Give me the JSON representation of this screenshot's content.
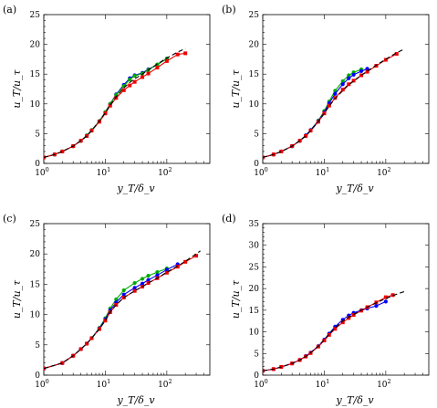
{
  "chart_data": [
    {
      "panel": "(a)",
      "type": "line",
      "xlabel": "y_T/δ_v",
      "ylabel": "u_T/u_τ",
      "xscale": "log",
      "xlim": [
        1,
        500
      ],
      "ylim": [
        0,
        25
      ],
      "yticks": [
        0,
        5,
        10,
        15,
        20,
        25
      ],
      "xticks": [
        {
          "v": 1,
          "b": "10",
          "e": "0"
        },
        {
          "v": 10,
          "b": "10",
          "e": "1"
        },
        {
          "v": 100,
          "b": "10",
          "e": "2"
        }
      ],
      "series": [
        {
          "color": "#0000ff",
          "style": "solid",
          "marker": "circle",
          "x": [
            1,
            1.5,
            2,
            3,
            4,
            5,
            6,
            8,
            10,
            12,
            15,
            20,
            25,
            30,
            40,
            50,
            70,
            100
          ],
          "y": [
            1.0,
            1.5,
            2.0,
            2.9,
            3.8,
            4.7,
            5.6,
            7.1,
            8.6,
            10.0,
            11.6,
            13.2,
            14.3,
            14.8,
            15.2,
            15.8,
            16.6,
            17.6
          ]
        },
        {
          "color": "#00aa00",
          "style": "solid",
          "marker": "circle",
          "x": [
            1,
            1.5,
            2,
            3,
            4,
            5,
            6,
            8,
            10,
            12,
            15,
            20,
            25,
            30,
            40,
            50,
            70,
            100
          ],
          "y": [
            1.0,
            1.5,
            2.0,
            2.9,
            3.8,
            4.7,
            5.6,
            7.1,
            8.6,
            10.0,
            11.5,
            13.0,
            14.1,
            14.7,
            15.1,
            15.7,
            16.6,
            17.6
          ]
        },
        {
          "color": "#ee0000",
          "style": "solid",
          "marker": "square",
          "x": [
            1,
            1.5,
            2,
            3,
            4,
            5,
            6,
            8,
            10,
            12,
            15,
            20,
            25,
            30,
            40,
            50,
            70,
            100,
            150,
            200
          ],
          "y": [
            1.0,
            1.5,
            2.0,
            2.9,
            3.8,
            4.6,
            5.5,
            7.0,
            8.4,
            9.7,
            11.0,
            12.3,
            13.1,
            13.7,
            14.5,
            15.1,
            16.1,
            17.2,
            18.3,
            18.5
          ]
        },
        {
          "color": "#000000",
          "style": "dashed",
          "marker": "none",
          "x": [
            1,
            1.5,
            2,
            3,
            4,
            5,
            6,
            8,
            10,
            12,
            15,
            20,
            25,
            30,
            40,
            50,
            70,
            100,
            150,
            200
          ],
          "y": [
            1.0,
            1.5,
            2.0,
            2.9,
            3.8,
            4.6,
            5.5,
            7.1,
            8.5,
            9.8,
            11.2,
            12.7,
            13.6,
            14.2,
            15.0,
            15.7,
            16.7,
            17.7,
            18.7,
            19.3
          ]
        }
      ]
    },
    {
      "panel": "(b)",
      "type": "line",
      "xlabel": "y_T/δ_v",
      "ylabel": "u_T/u_τ",
      "xscale": "log",
      "xlim": [
        1,
        500
      ],
      "ylim": [
        0,
        25
      ],
      "yticks": [
        0,
        5,
        10,
        15,
        20,
        25
      ],
      "xticks": [
        {
          "v": 1,
          "b": "10",
          "e": "0"
        },
        {
          "v": 10,
          "b": "10",
          "e": "1"
        },
        {
          "v": 100,
          "b": "10",
          "e": "2"
        }
      ],
      "series": [
        {
          "color": "#00aa00",
          "style": "solid",
          "marker": "circle",
          "x": [
            1,
            1.5,
            2,
            3,
            4,
            5,
            6,
            8,
            10,
            12,
            15,
            20,
            25,
            30,
            40
          ],
          "y": [
            1.0,
            1.5,
            2.0,
            2.9,
            3.8,
            4.7,
            5.6,
            7.2,
            8.8,
            10.4,
            12.2,
            13.8,
            14.8,
            15.3,
            15.8
          ]
        },
        {
          "color": "#0000ff",
          "style": "solid",
          "marker": "circle",
          "x": [
            1,
            1.5,
            2,
            3,
            4,
            5,
            6,
            8,
            10,
            12,
            15,
            20,
            25,
            30,
            40,
            50
          ],
          "y": [
            1.0,
            1.5,
            2.0,
            2.9,
            3.8,
            4.7,
            5.6,
            7.1,
            8.6,
            10.1,
            11.7,
            13.3,
            14.3,
            14.9,
            15.5,
            15.9
          ]
        },
        {
          "color": "#ee0000",
          "style": "solid",
          "marker": "square",
          "x": [
            1,
            1.5,
            2,
            3,
            4,
            5,
            6,
            8,
            10,
            12,
            15,
            20,
            25,
            30,
            40,
            50,
            70,
            100,
            150
          ],
          "y": [
            1.0,
            1.5,
            2.0,
            2.9,
            3.8,
            4.6,
            5.5,
            7.0,
            8.4,
            9.7,
            11.0,
            12.4,
            13.3,
            13.9,
            14.8,
            15.4,
            16.4,
            17.4,
            18.4
          ]
        },
        {
          "color": "#000000",
          "style": "dashed",
          "marker": "none",
          "x": [
            1,
            1.5,
            2,
            3,
            4,
            5,
            6,
            8,
            10,
            12,
            15,
            20,
            25,
            30,
            40,
            50,
            70,
            100,
            150,
            200
          ],
          "y": [
            1.0,
            1.5,
            2.0,
            2.9,
            3.8,
            4.6,
            5.5,
            7.0,
            8.4,
            9.6,
            10.9,
            12.2,
            13.2,
            13.8,
            14.8,
            15.5,
            16.5,
            17.5,
            18.6,
            19.2
          ]
        }
      ]
    },
    {
      "panel": "(c)",
      "type": "line",
      "xlabel": "y_T/δ_v",
      "ylabel": "u_T/u_τ",
      "xscale": "log",
      "xlim": [
        1,
        500
      ],
      "ylim": [
        0,
        25
      ],
      "yticks": [
        0,
        5,
        10,
        15,
        20,
        25
      ],
      "xticks": [
        {
          "v": 1,
          "b": "10",
          "e": "0"
        },
        {
          "v": 10,
          "b": "10",
          "e": "1"
        },
        {
          "v": 100,
          "b": "10",
          "e": "2"
        }
      ],
      "series": [
        {
          "color": "#00aa00",
          "style": "solid",
          "marker": "circle",
          "x": [
            1,
            2,
            3,
            4,
            5,
            6,
            8,
            10,
            12,
            15,
            20,
            30,
            40,
            50,
            70,
            100
          ],
          "y": [
            1.1,
            2.0,
            3.2,
            4.3,
            5.2,
            6.1,
            7.8,
            9.4,
            11.0,
            12.5,
            14.0,
            15.2,
            15.9,
            16.4,
            17.0,
            17.6
          ]
        },
        {
          "color": "#0000ff",
          "style": "solid",
          "marker": "circle",
          "x": [
            1,
            2,
            3,
            4,
            5,
            6,
            8,
            10,
            12,
            15,
            20,
            30,
            40,
            50,
            70,
            100,
            150
          ],
          "y": [
            1.1,
            2.0,
            3.2,
            4.3,
            5.2,
            6.1,
            7.7,
            9.2,
            10.7,
            12.0,
            13.3,
            14.4,
            15.1,
            15.7,
            16.5,
            17.4,
            18.3
          ]
        },
        {
          "color": "#ee0000",
          "style": "solid",
          "marker": "square",
          "x": [
            1,
            2,
            3,
            4,
            5,
            6,
            8,
            10,
            12,
            15,
            20,
            30,
            40,
            50,
            70,
            100,
            150,
            200,
            300
          ],
          "y": [
            1.1,
            2.0,
            3.2,
            4.3,
            5.2,
            6.1,
            7.6,
            9.0,
            10.4,
            11.6,
            12.8,
            13.9,
            14.6,
            15.2,
            16.0,
            16.9,
            17.9,
            18.7,
            19.7
          ]
        },
        {
          "color": "#000000",
          "style": "dashed",
          "marker": "none",
          "x": [
            1,
            2,
            3,
            4,
            5,
            6,
            8,
            10,
            12,
            15,
            20,
            30,
            40,
            50,
            70,
            100,
            150,
            200,
            300,
            350
          ],
          "y": [
            1.1,
            2.0,
            3.2,
            4.3,
            5.2,
            6.1,
            7.6,
            9.0,
            10.4,
            11.6,
            12.8,
            13.9,
            14.6,
            15.2,
            16.0,
            17.0,
            18.0,
            18.8,
            20.0,
            20.5
          ]
        }
      ]
    },
    {
      "panel": "(d)",
      "type": "line",
      "xlabel": "y_T/δ_v",
      "ylabel": "u_T/u_τ",
      "xscale": "log",
      "xlim": [
        1,
        500
      ],
      "ylim": [
        0,
        35
      ],
      "yticks": [
        0,
        5,
        10,
        15,
        20,
        25,
        30,
        35
      ],
      "xticks": [
        {
          "v": 1,
          "b": "10",
          "e": "0"
        },
        {
          "v": 10,
          "b": "10",
          "e": "1"
        },
        {
          "v": 100,
          "b": "10",
          "e": "2"
        }
      ],
      "series": [
        {
          "color": "#0000ff",
          "style": "solid",
          "marker": "circle",
          "x": [
            1,
            1.5,
            2,
            3,
            4,
            5,
            6,
            8,
            10,
            12,
            15,
            20,
            25,
            30,
            40,
            50,
            70,
            100
          ],
          "y": [
            1.0,
            1.4,
            1.9,
            2.7,
            3.5,
            4.4,
            5.2,
            6.7,
            8.2,
            9.6,
            11.2,
            12.8,
            13.8,
            14.4,
            15.0,
            15.4,
            16.0,
            17.0
          ]
        },
        {
          "color": "#ee0000",
          "style": "solid",
          "marker": "square",
          "x": [
            1,
            1.5,
            2,
            3,
            4,
            5,
            6,
            8,
            10,
            12,
            15,
            20,
            25,
            30,
            40,
            50,
            70,
            100,
            130
          ],
          "y": [
            1.0,
            1.4,
            1.9,
            2.7,
            3.5,
            4.3,
            5.1,
            6.6,
            8.0,
            9.3,
            10.7,
            12.2,
            13.2,
            13.9,
            14.9,
            15.7,
            16.8,
            18.0,
            18.5
          ]
        },
        {
          "color": "#000000",
          "style": "dashed",
          "marker": "none",
          "x": [
            1,
            1.5,
            2,
            3,
            4,
            5,
            6,
            8,
            10,
            12,
            15,
            20,
            25,
            30,
            40,
            50,
            70,
            100,
            150,
            200
          ],
          "y": [
            1.0,
            1.4,
            1.9,
            2.7,
            3.5,
            4.3,
            5.2,
            6.7,
            8.2,
            9.5,
            10.9,
            12.5,
            13.4,
            14.0,
            15.0,
            15.7,
            16.7,
            17.7,
            18.7,
            19.3
          ]
        }
      ]
    }
  ]
}
